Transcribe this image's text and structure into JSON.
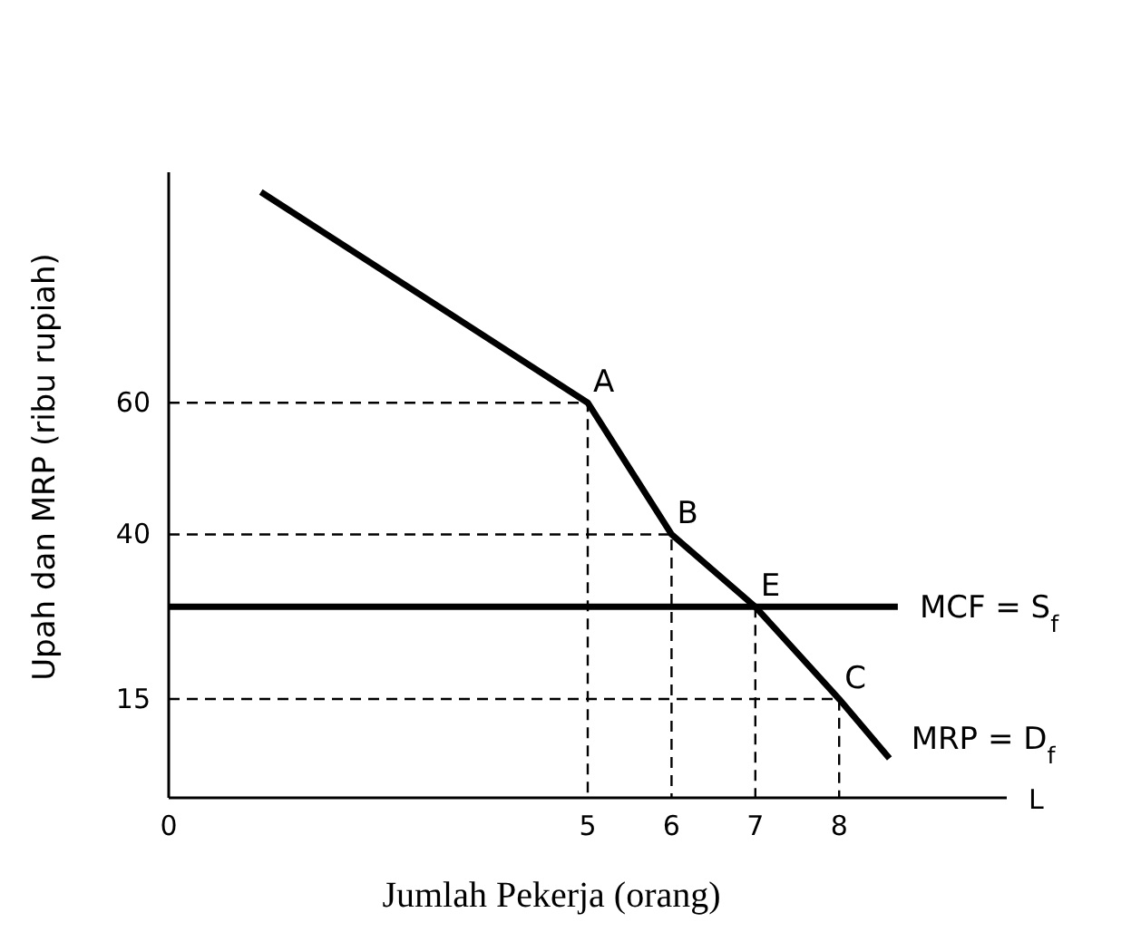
{
  "chart_data": {
    "type": "line",
    "xlabel": "Jumlah Pekerja (orang)",
    "ylabel": "Upah dan MRP (ribu rupiah)",
    "xlim": [
      0,
      10
    ],
    "ylim": [
      0,
      95
    ],
    "xticks": [
      0,
      5,
      6,
      7,
      8
    ],
    "yticks": [
      15,
      40,
      60
    ],
    "grid": false,
    "marker": "none",
    "series": [
      {
        "name": "MRP = D$_{f}$",
        "color": "#000000",
        "x": [
          1.1,
          5,
          6,
          7,
          8,
          8.6
        ],
        "values": [
          92,
          60,
          40,
          29,
          15,
          6
        ]
      },
      {
        "name": "MCF = S$_{f}$",
        "color": "#000000",
        "x": [
          0,
          8.7
        ],
        "values": [
          29,
          29
        ]
      },
      {
        "color": "#000000",
        "line_style": "dashed",
        "x": [
          0,
          5,
          5
        ],
        "values": [
          60,
          60,
          0
        ]
      },
      {
        "color": "#000000",
        "line_style": "dashed",
        "x": [
          0,
          6,
          6
        ],
        "values": [
          40,
          40,
          0
        ]
      },
      {
        "color": "#000000",
        "line_style": "dashed",
        "x": [
          0,
          8,
          8
        ],
        "values": [
          15,
          15,
          0
        ]
      },
      {
        "color": "#000000",
        "line_style": "dashed",
        "x": [
          7,
          7
        ],
        "values": [
          29,
          0
        ]
      }
    ],
    "annotations": [
      {
        "text": "A",
        "x": 5,
        "y": 60
      },
      {
        "text": "B",
        "x": 6,
        "y": 40
      },
      {
        "text": "E",
        "x": 7,
        "y": 29
      },
      {
        "text": "C",
        "x": 8,
        "y": 15
      },
      "L"
    ]
  }
}
